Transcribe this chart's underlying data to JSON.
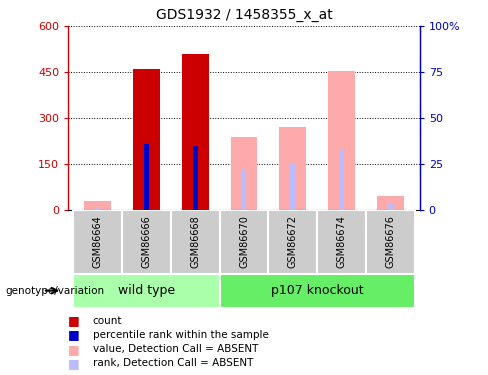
{
  "title": "GDS1932 / 1458355_x_at",
  "samples": [
    "GSM86664",
    "GSM86666",
    "GSM86668",
    "GSM86670",
    "GSM86672",
    "GSM86674",
    "GSM86676"
  ],
  "count_values": [
    0,
    460,
    510,
    0,
    0,
    0,
    0
  ],
  "rank_values": [
    0,
    215,
    210,
    0,
    0,
    0,
    0
  ],
  "absent_value_values": [
    30,
    0,
    0,
    240,
    270,
    455,
    45
  ],
  "absent_rank_values": [
    5,
    0,
    0,
    135,
    150,
    200,
    20
  ],
  "ylim_left": [
    0,
    600
  ],
  "yticks_left": [
    0,
    150,
    300,
    450,
    600
  ],
  "ytick_labels_left": [
    "0",
    "150",
    "300",
    "450",
    "600"
  ],
  "ytick_labels_right": [
    "0",
    "25",
    "50",
    "75",
    "100%"
  ],
  "color_count": "#cc0000",
  "color_rank": "#0000cc",
  "color_absent_value": "#ffaaaa",
  "color_absent_rank": "#bbbbff",
  "color_wt_bg": "#aaffaa",
  "color_ko_bg": "#66ee66",
  "color_axis_left": "#cc0000",
  "color_axis_right": "#0000cc",
  "group_wt": "wild type",
  "group_ko": "p107 knockout",
  "wt_count": 3,
  "ko_count": 4,
  "legend_count": "count",
  "legend_rank": "percentile rank within the sample",
  "legend_absent_value": "value, Detection Call = ABSENT",
  "legend_absent_rank": "rank, Detection Call = ABSENT"
}
